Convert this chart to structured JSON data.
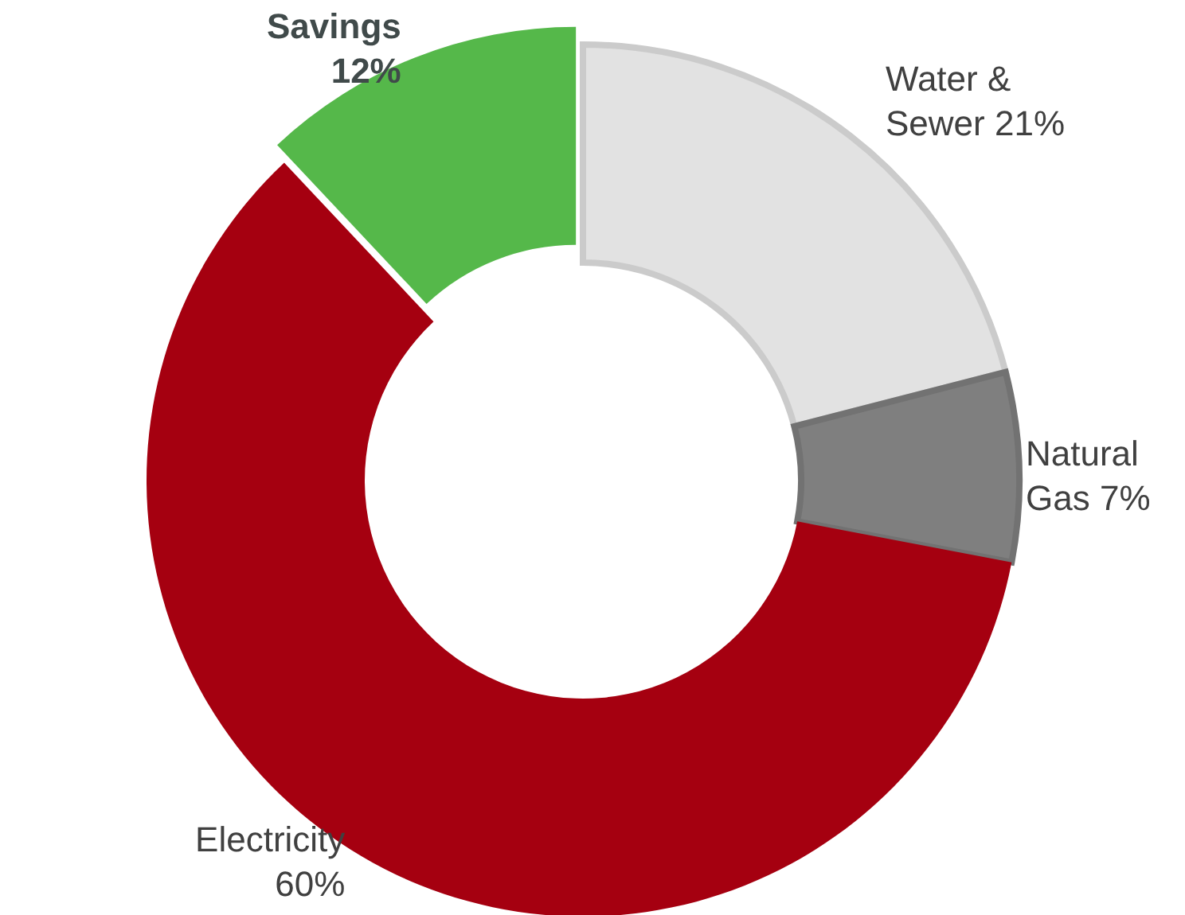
{
  "chart_data": {
    "type": "donut",
    "categories": [
      "Water & Sewer",
      "Natural Gas",
      "Electricity",
      "Savings"
    ],
    "values": [
      21,
      7,
      60,
      12
    ],
    "colors": [
      "#e2e2e2",
      "#7f7f7f",
      "#a50010",
      "#55b84a"
    ],
    "value_labels": [
      "21%",
      "7%",
      "60%",
      "12%"
    ]
  }
}
